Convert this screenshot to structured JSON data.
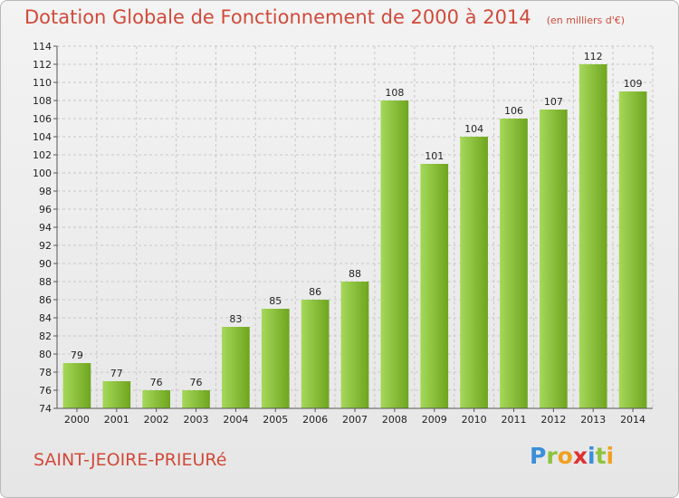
{
  "header": {
    "title": "Dotation Globale de Fonctionnement de 2000 à 2014",
    "subtitle": "(en milliers d'€)"
  },
  "footer": {
    "place": "SAINT-JEOIRE-PRIEURé",
    "brand_letters": [
      "P",
      "r",
      "o",
      "x",
      "i",
      "t",
      "i"
    ],
    "brand_colors": [
      "#3a8fd8",
      "#8cc43c",
      "#f0a020",
      "#e03030",
      "#3a8fd8",
      "#8cc43c",
      "#f0a020"
    ]
  },
  "colors": {
    "bar_light": "#a6d85a",
    "bar_dark": "#6ea51e",
    "grid": "#c8c8c8",
    "title": "#d04a3a"
  },
  "chart_data": {
    "type": "bar",
    "categories": [
      "2000",
      "2001",
      "2002",
      "2003",
      "2004",
      "2005",
      "2006",
      "2007",
      "2008",
      "2009",
      "2010",
      "2011",
      "2012",
      "2013",
      "2014"
    ],
    "values": [
      79,
      77,
      76,
      76,
      83,
      85,
      86,
      88,
      108,
      101,
      104,
      106,
      107,
      112,
      109
    ],
    "title": "Dotation Globale de Fonctionnement de 2000 à 2014",
    "subtitle": "(en milliers d'€)",
    "ylim": [
      74,
      114
    ],
    "yticks": [
      74,
      76,
      78,
      80,
      82,
      84,
      86,
      88,
      90,
      92,
      94,
      96,
      98,
      100,
      102,
      104,
      106,
      108,
      110,
      112,
      114
    ],
    "grid": true,
    "data_labels": true
  }
}
